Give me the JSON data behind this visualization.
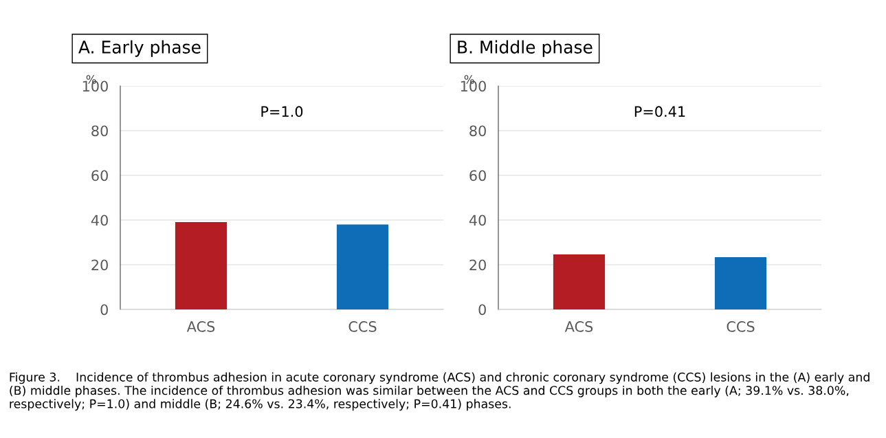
{
  "chart_data": [
    {
      "type": "bar",
      "title": "A. Early phase",
      "ylabel": "%",
      "categories": [
        "ACS",
        "CCS"
      ],
      "values": [
        39.1,
        38.0
      ],
      "colors": [
        "#b31d23",
        "#0f6cb6"
      ],
      "ylim": [
        0,
        100
      ],
      "yticks": [
        0,
        20,
        40,
        60,
        80,
        100
      ],
      "grid": "y",
      "annotations": [
        "P=1.0"
      ]
    },
    {
      "type": "bar",
      "title": "B. Middle phase",
      "ylabel": "%",
      "categories": [
        "ACS",
        "CCS"
      ],
      "values": [
        24.6,
        23.4
      ],
      "colors": [
        "#b31d23",
        "#0f6cb6"
      ],
      "ylim": [
        0,
        100
      ],
      "yticks": [
        0,
        20,
        40,
        60,
        80,
        100
      ],
      "grid": "y",
      "annotations": [
        "P=0.41",
        "Figure 3.    Incidence of thrombus adhesion in acute coronary syndrome (ACS) and chronic coronary syndrome (CCS) lesions in the (A) early and (B) middle phases. The incidence of thrombus adhesion was similar between the ACS and CCS groups in both the early (A; 39.1% vs. 38.0%, respectively; P=1.0) and middle (B; 24.6% vs. 23.4%, respectively; P=0.41) phases."
      ]
    }
  ]
}
